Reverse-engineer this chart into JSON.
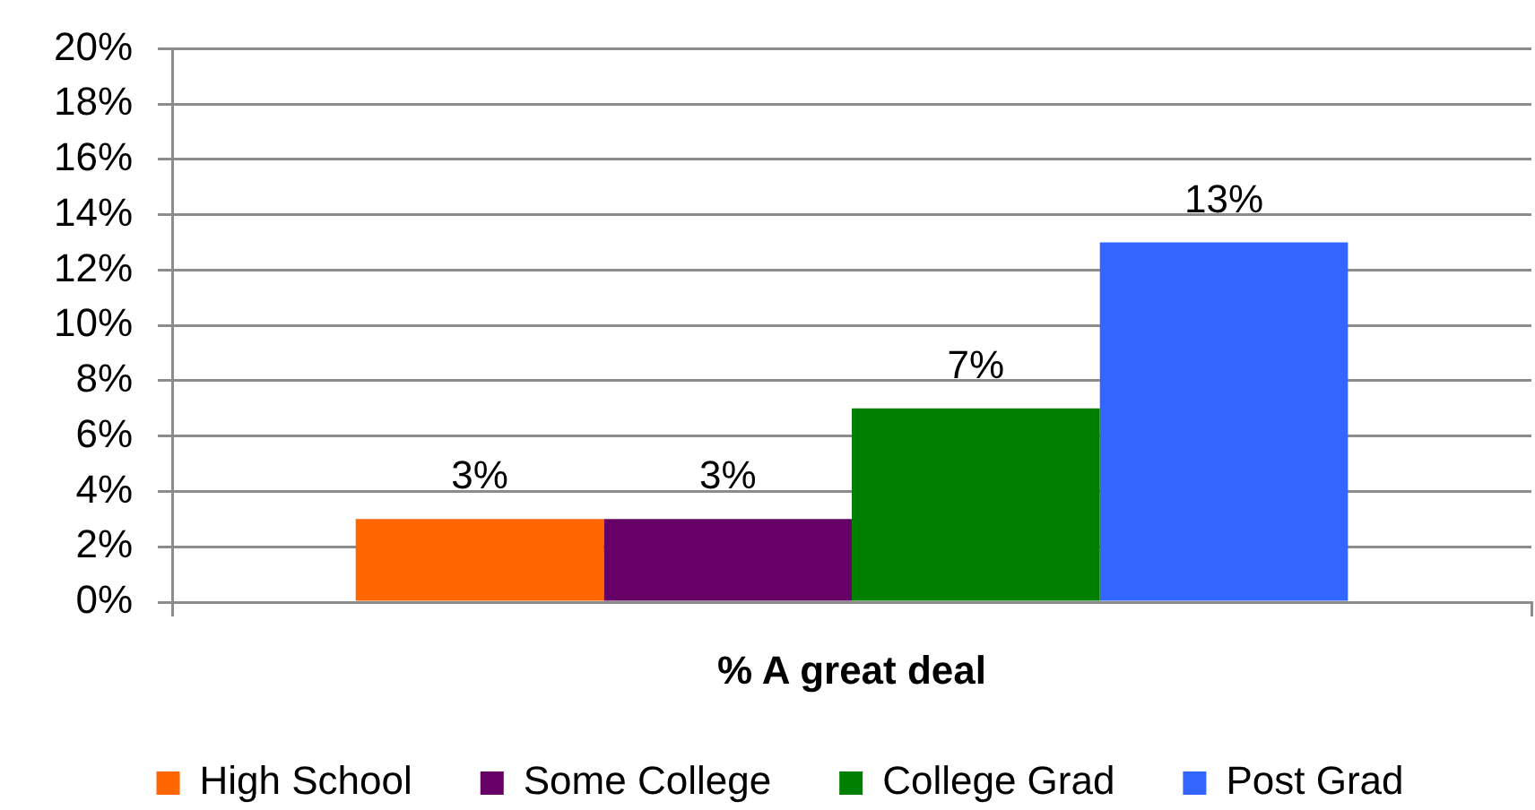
{
  "chart_data": {
    "type": "bar",
    "categories": [
      "% A great deal"
    ],
    "series": [
      {
        "name": "High School",
        "color": "#ff6600",
        "values": [
          3
        ],
        "value_labels": [
          "3%"
        ]
      },
      {
        "name": "Some College",
        "color": "#660066",
        "values": [
          3
        ],
        "value_labels": [
          "3%"
        ]
      },
      {
        "name": "College Grad",
        "color": "#008000",
        "values": [
          7
        ],
        "value_labels": [
          "7%"
        ]
      },
      {
        "name": "Post Grad",
        "color": "#3366ff",
        "values": [
          13
        ],
        "value_labels": [
          "13%"
        ]
      }
    ],
    "ylim": [
      0,
      20
    ],
    "yticks": [
      {
        "value": 0,
        "label": "0%"
      },
      {
        "value": 2,
        "label": "2%"
      },
      {
        "value": 4,
        "label": "4%"
      },
      {
        "value": 6,
        "label": "6%"
      },
      {
        "value": 8,
        "label": "8%"
      },
      {
        "value": 10,
        "label": "10%"
      },
      {
        "value": 12,
        "label": "12%"
      },
      {
        "value": 14,
        "label": "14%"
      },
      {
        "value": 16,
        "label": "16%"
      },
      {
        "value": 18,
        "label": "18%"
      },
      {
        "value": 20,
        "label": "20%"
      }
    ],
    "grid": "y",
    "legend": "bottom"
  }
}
